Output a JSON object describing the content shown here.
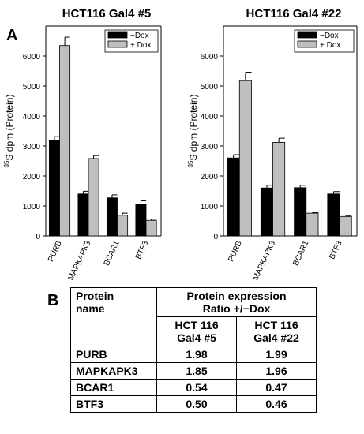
{
  "panels": {
    "a": "A",
    "b": "B"
  },
  "chart_data": [
    {
      "type": "bar",
      "title": "HCT116 Gal4 #5",
      "ylabel_sup": "35",
      "ylabel": "S dpm (Protein)",
      "xlabel": "",
      "categories": [
        "PURB",
        "MAPKAPK3",
        "BCAR1",
        "BTF3"
      ],
      "ylim": [
        0,
        7000
      ],
      "yticks": [
        0,
        1000,
        2000,
        3000,
        4000,
        5000,
        6000
      ],
      "series": [
        {
          "name": "−Dox",
          "color": "#000000",
          "values": [
            3200,
            1400,
            1270,
            1060
          ],
          "errors": [
            110,
            90,
            100,
            110
          ]
        },
        {
          "name": "+ Dox",
          "color": "#bfbfbf",
          "values": [
            6350,
            2580,
            690,
            520
          ],
          "errors": [
            280,
            100,
            70,
            40
          ]
        }
      ],
      "legend": "top-right"
    },
    {
      "type": "bar",
      "title": "HCT116 Gal4 #22",
      "ylabel_sup": "35",
      "ylabel": "S dpm (Protein)",
      "xlabel": "",
      "categories": [
        "PURB",
        "MAPKAPK3",
        "BCAR1",
        "BTF3"
      ],
      "ylim": [
        0,
        7000
      ],
      "yticks": [
        0,
        1000,
        2000,
        3000,
        4000,
        5000,
        6000
      ],
      "series": [
        {
          "name": "−Dox",
          "color": "#000000",
          "values": [
            2600,
            1600,
            1610,
            1400
          ],
          "errors": [
            110,
            90,
            80,
            80
          ]
        },
        {
          "name": "+ Dox",
          "color": "#bfbfbf",
          "values": [
            5180,
            3120,
            760,
            650
          ],
          "errors": [
            280,
            140,
            15,
            15
          ]
        }
      ],
      "legend": "top-right"
    }
  ],
  "table": {
    "col1_header": "Protein\nname",
    "group_header": "Protein expression\nRatio +/−Dox",
    "sub_headers": [
      "HCT 116\nGal4 #5",
      "HCT 116\nGal4 #22"
    ],
    "rows": [
      {
        "name": "PURB",
        "v1": "1.98",
        "v2": "1.99"
      },
      {
        "name": "MAPKAPK3",
        "v1": "1.85",
        "v2": "1.96"
      },
      {
        "name": "BCAR1",
        "v1": "0.54",
        "v2": "0.47"
      },
      {
        "name": "BTF3",
        "v1": "0.50",
        "v2": "0.46"
      }
    ]
  }
}
